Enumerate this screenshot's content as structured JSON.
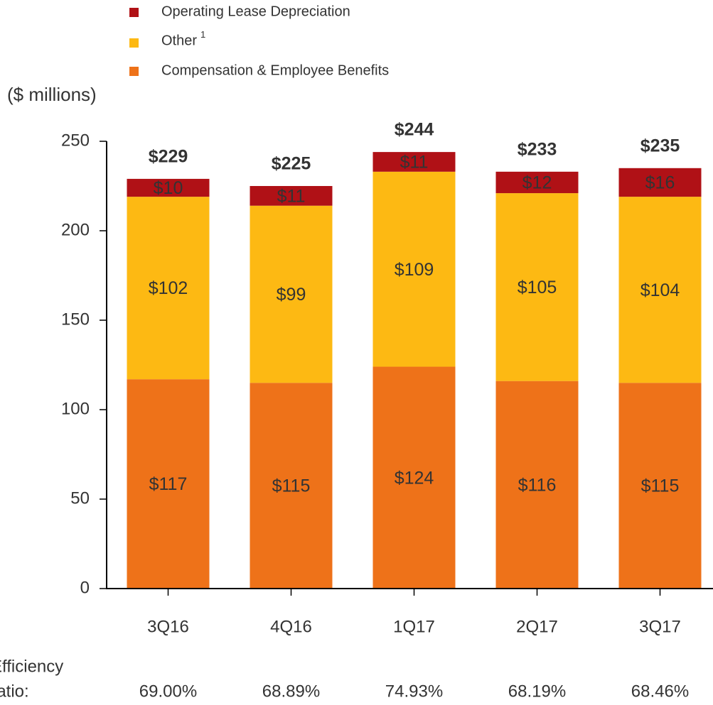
{
  "chart_data": {
    "type": "stacked_bar",
    "y_axis_label": "($ millions)",
    "categories": [
      "3Q16",
      "4Q16",
      "1Q17",
      "2Q17",
      "3Q17"
    ],
    "series": [
      {
        "name": "Compensation & Employee Benefits",
        "color": "#ee7219",
        "label_color": "#ffffff",
        "values": [
          117,
          115,
          124,
          116,
          115
        ],
        "value_labels": [
          "$117",
          "$115",
          "$124",
          "$116",
          "$115"
        ]
      },
      {
        "name": "Other",
        "footnote": "1",
        "color": "#fdb913",
        "label_color": "#58595b",
        "values": [
          102,
          99,
          109,
          105,
          104
        ],
        "value_labels": [
          "$102",
          "$99",
          "$109",
          "$105",
          "$104"
        ]
      },
      {
        "name": "Operating Lease Depreciation",
        "color": "#b01116",
        "label_color": "#ffffff",
        "values": [
          10,
          11,
          11,
          12,
          16
        ],
        "value_labels": [
          "$10",
          "$11",
          "$11",
          "$12",
          "$16"
        ]
      }
    ],
    "totals": [
      229,
      225,
      244,
      233,
      235
    ],
    "total_labels": [
      "$229",
      "$225",
      "$244",
      "$233",
      "$235"
    ],
    "ylim": [
      0,
      250
    ],
    "yticks": [
      0,
      50,
      100,
      150,
      200,
      250
    ],
    "efficiency_ratio": {
      "label": [
        "Efficiency",
        "Ratio:"
      ],
      "values": [
        69.0,
        68.89,
        74.93,
        68.19,
        68.46
      ],
      "value_labels": [
        "69.00%",
        "68.89%",
        "74.93%",
        "68.19%",
        "68.46%"
      ]
    }
  }
}
